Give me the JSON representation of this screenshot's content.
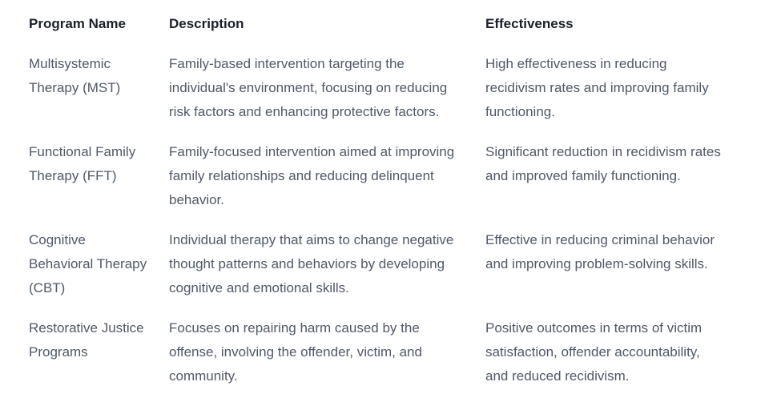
{
  "colors": {
    "background": "#ffffff",
    "header_text": "#1a202c",
    "body_text": "#4f5969"
  },
  "table": {
    "columns": [
      {
        "key": "program",
        "label": "Program Name"
      },
      {
        "key": "description",
        "label": "Description"
      },
      {
        "key": "effectiveness",
        "label": "Effectiveness"
      }
    ],
    "rows": [
      {
        "program": "Multisystemic\nTherapy (MST)",
        "description": "Family-based intervention targeting the\nindividual's environment, focusing on reducing\nrisk factors and enhancing protective factors.",
        "effectiveness": "High effectiveness in reducing\nrecidivism rates and improving family\nfunctioning."
      },
      {
        "program": "Functional Family\nTherapy (FFT)",
        "description": "Family-focused intervention aimed at improving\nfamily relationships and reducing delinquent\nbehavior.",
        "effectiveness": "Significant reduction in recidivism rates\nand improved family functioning."
      },
      {
        "program": "Cognitive\nBehavioral Therapy\n(CBT)",
        "description": "Individual therapy that aims to change negative\nthought patterns and behaviors by developing\ncognitive and emotional skills.",
        "effectiveness": "Effective in reducing criminal behavior\nand improving problem-solving skills."
      },
      {
        "program": "Restorative Justice\nPrograms",
        "description": "Focuses on repairing harm caused by the\noffense, involving the offender, victim, and\ncommunity.",
        "effectiveness": "Positive outcomes in terms of victim\nsatisfaction, offender accountability,\nand reduced recidivism."
      }
    ]
  }
}
